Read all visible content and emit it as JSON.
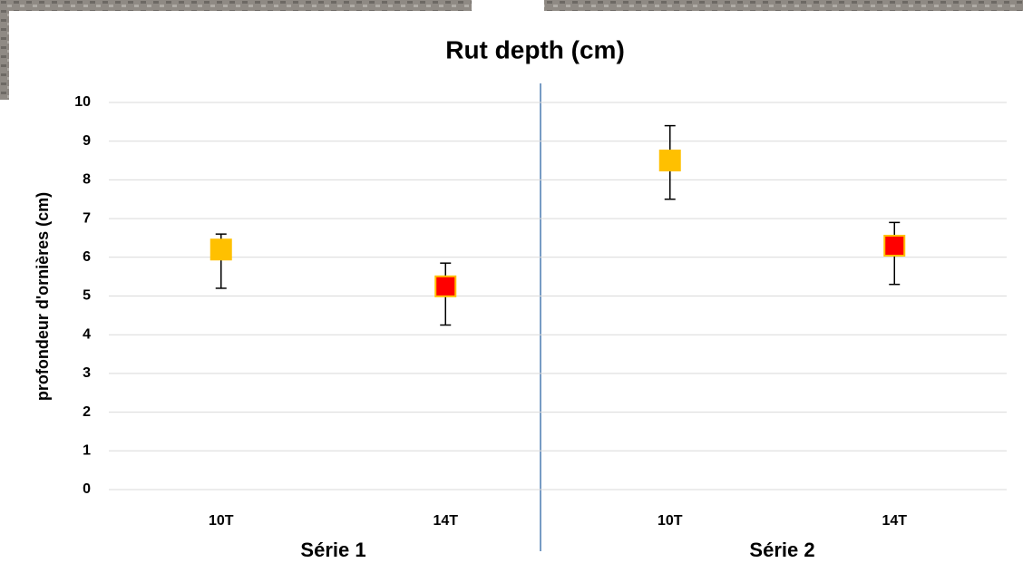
{
  "chart_data": {
    "type": "scatter",
    "title": "Rut depth (cm)",
    "y_label": "profondeur d'ornières (cm)",
    "categories": [
      "10T",
      "14T",
      "10T",
      "14T"
    ],
    "groups": [
      "Série 1",
      "Série 2"
    ],
    "values": [
      6.2,
      5.25,
      8.5,
      6.3
    ],
    "err_minus": [
      1.0,
      1.0,
      1.0,
      1.0
    ],
    "err_plus": [
      0.4,
      0.6,
      0.9,
      0.6
    ],
    "colors": [
      "#ffc000",
      "#ff0000",
      "#ffc000",
      "#ff0000"
    ],
    "ylim": [
      0,
      10
    ],
    "yticks": [
      0,
      1,
      2,
      3,
      4,
      5,
      6,
      7,
      8,
      9,
      10
    ],
    "grid": true
  }
}
